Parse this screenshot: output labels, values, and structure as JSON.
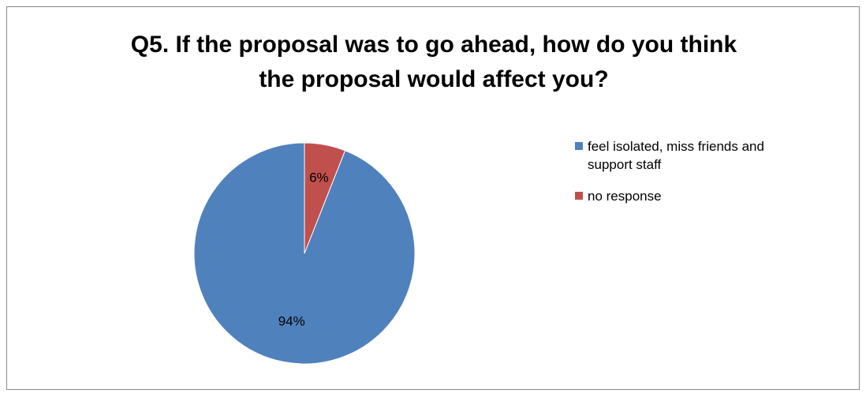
{
  "chart_data": {
    "type": "pie",
    "title_lines": [
      "Q5. If the proposal was to go ahead, how do you think",
      "the proposal would affect you?"
    ],
    "slices": [
      {
        "name": "feel isolated, miss friends and support staff",
        "legend_lines": [
          "feel isolated, miss friends and",
          "support staff"
        ],
        "value": 94,
        "label": "94%",
        "color": "#4F81BD"
      },
      {
        "name": "no response",
        "legend_lines": [
          "no response"
        ],
        "value": 6,
        "label": "6%",
        "color": "#C0504D"
      }
    ],
    "start_angle_deg": 0,
    "direction": "counterclockwise",
    "legend_position": "right"
  }
}
